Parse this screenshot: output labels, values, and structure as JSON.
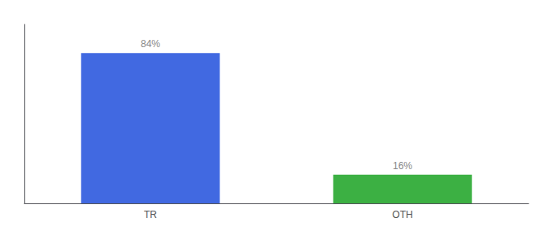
{
  "chart_data": {
    "type": "bar",
    "categories": [
      "TR",
      "OTH"
    ],
    "values": [
      84,
      16
    ],
    "colors": [
      "#4169E1",
      "#3CB043"
    ],
    "value_labels": [
      "84%",
      "16%"
    ],
    "data_labels": true,
    "ylim": [
      0,
      100
    ],
    "tick_labels": "x",
    "grid": false
  }
}
